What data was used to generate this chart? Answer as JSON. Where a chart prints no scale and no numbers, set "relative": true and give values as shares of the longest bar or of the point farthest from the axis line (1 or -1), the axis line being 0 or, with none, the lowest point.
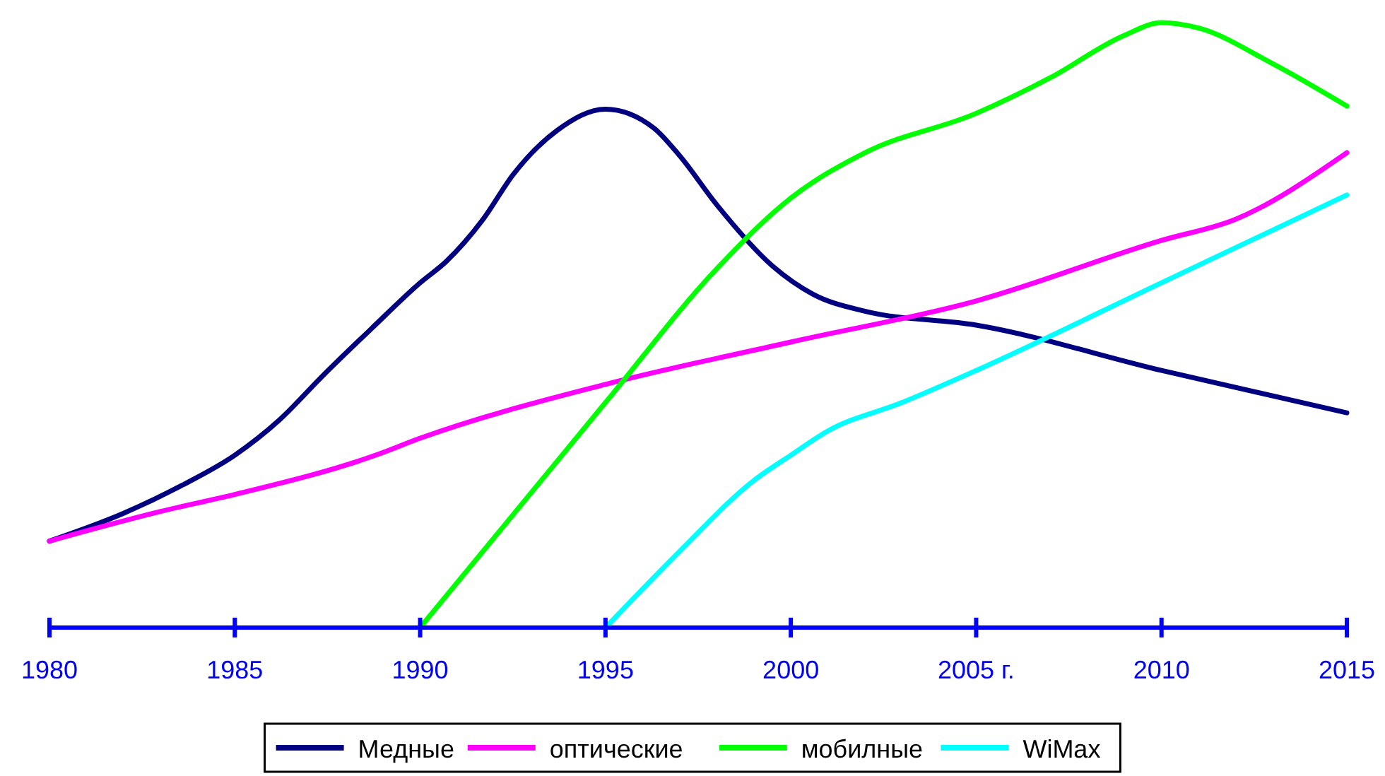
{
  "chart_data": {
    "type": "line",
    "relative": true,
    "xlim": [
      1980,
      2015
    ],
    "xticks": [
      1980,
      1985,
      1990,
      1995,
      2000,
      {
        "value": 2005,
        "label": "2005 г."
      },
      2010,
      2015
    ],
    "legend": "bottom",
    "grid": false,
    "line_style": "solid",
    "series": [
      {
        "name": "Медные",
        "color": "#000080",
        "x": [
          1980,
          1982,
          1983.6,
          1985,
          1986.2,
          1987.4,
          1988.7,
          1990,
          1990.7,
          1991.7,
          1992.5,
          1993.7,
          1995,
          1996.3,
          1997,
          1998,
          1999.5,
          2000.6,
          2002,
          2005,
          2010,
          2015
        ],
        "values": [
          0.143,
          0.189,
          0.236,
          0.285,
          0.343,
          0.418,
          0.495,
          0.57,
          0.605,
          0.675,
          0.748,
          0.822,
          0.857,
          0.826,
          0.78,
          0.699,
          0.598,
          0.551,
          0.523,
          0.5,
          0.425,
          0.355
        ]
      },
      {
        "name": "оптические",
        "color": "#ff00ff",
        "x": [
          1980,
          1983,
          1985,
          1988.8,
          1990,
          1995,
          2000,
          2005,
          2010,
          2012,
          2015
        ],
        "values": [
          0.143,
          0.192,
          0.22,
          0.285,
          0.313,
          0.402,
          0.472,
          0.54,
          0.64,
          0.675,
          0.785
        ]
      },
      {
        "name": "мобилные",
        "color": "#00ff00",
        "x": [
          1990,
          1995,
          1998,
          2000,
          2002,
          2005,
          2007,
          2009,
          2010,
          2011,
          2013,
          2015
        ],
        "values": [
          0,
          0.372,
          0.593,
          0.71,
          0.785,
          0.85,
          0.909,
          0.979,
          1,
          0.991,
          0.932,
          0.862
        ]
      },
      {
        "name": "WiMax",
        "color": "#00ffff",
        "x": [
          1995,
          1997,
          1999,
          2000,
          2001,
          2003,
          2005,
          2010,
          2015
        ],
        "values": [
          0,
          0.126,
          0.243,
          0.285,
          0.325,
          0.372,
          0.425,
          0.57,
          0.715
        ]
      }
    ]
  }
}
